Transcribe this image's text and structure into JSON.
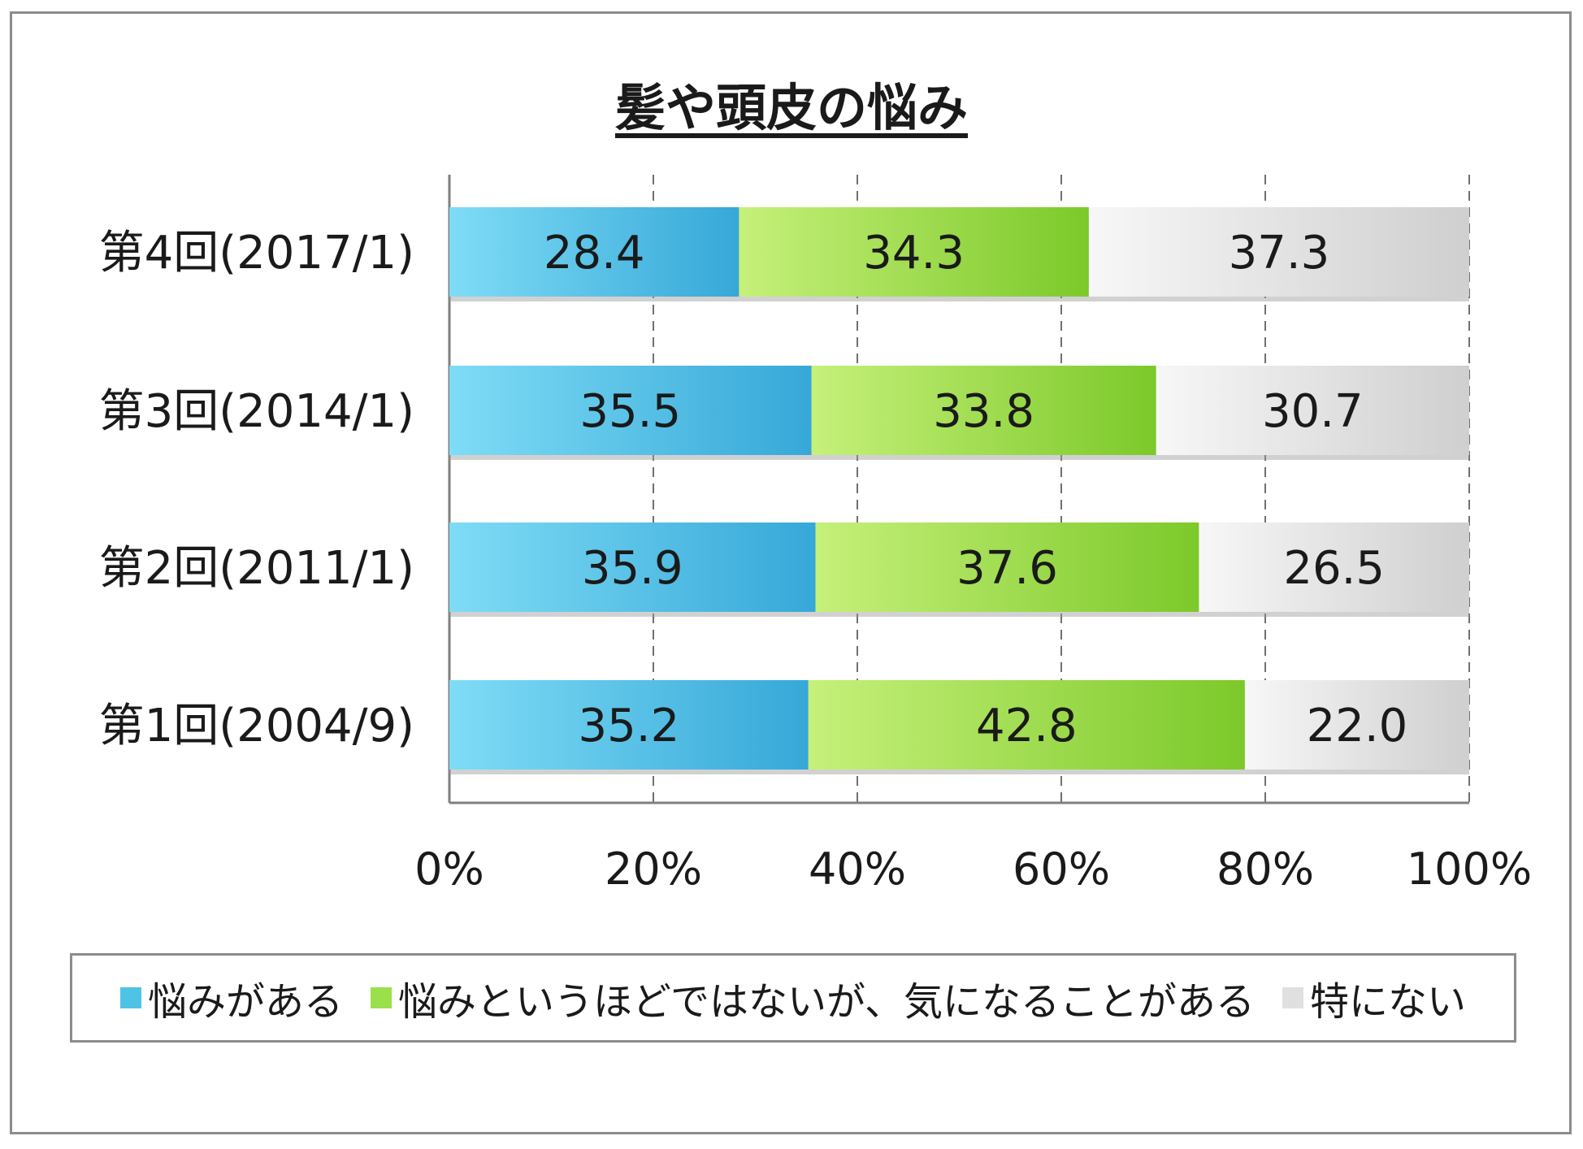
{
  "chart_data": {
    "type": "bar",
    "orientation": "horizontal",
    "stacked": "percent",
    "title": "髪や頭皮の悩み",
    "categories": [
      "第4回(2017/1)",
      "第3回(2014/1)",
      "第2回(2011/1)",
      "第1回(2004/9)"
    ],
    "series": [
      {
        "name": "悩みがある",
        "values": [
          28.4,
          35.5,
          35.9,
          35.2
        ],
        "labels": [
          "28.4",
          "35.5",
          "35.9",
          "35.2"
        ],
        "color": "#4fc3e6"
      },
      {
        "name": "悩みというほどではないが、気になることがある",
        "values": [
          34.3,
          33.8,
          37.6,
          42.8
        ],
        "labels": [
          "34.3",
          "33.8",
          "37.6",
          "42.8"
        ],
        "color": "#9be04a"
      },
      {
        "name": "特にない",
        "values": [
          37.3,
          30.7,
          26.5,
          22.0
        ],
        "labels": [
          "37.3",
          "30.7",
          "26.5",
          "22.0"
        ],
        "color": "#e0e0e0"
      }
    ],
    "xlim": [
      0,
      100
    ],
    "xticks": [
      "0%",
      "20%",
      "40%",
      "60%",
      "80%",
      "100%"
    ],
    "grid": "vertical-dashed",
    "legend": "bottom"
  }
}
